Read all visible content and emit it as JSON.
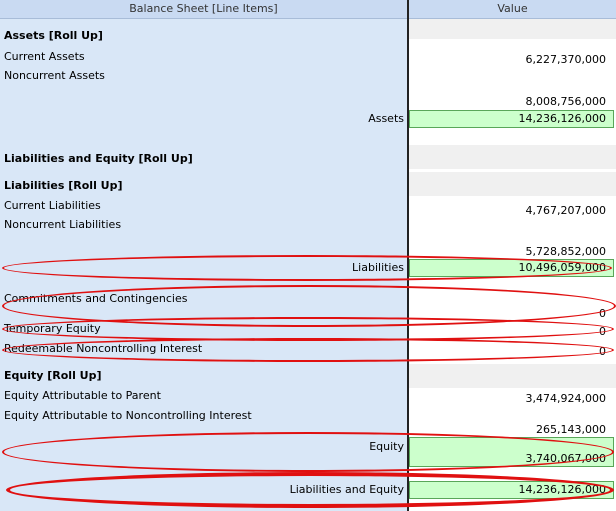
{
  "header": {
    "label_col": "Balance Sheet [Line Items]",
    "value_col": "Value"
  },
  "assets": {
    "title": "Assets [Roll Up]",
    "current_label": "Current Assets",
    "current_value": "6,227,370,000",
    "noncurrent_label": "Noncurrent Assets",
    "noncurrent_value": "8,008,756,000",
    "total_label": "Assets",
    "total_value": "14,236,126,000"
  },
  "le": {
    "title": "Liabilities and Equity [Roll Up]"
  },
  "liabilities": {
    "title": "Liabilities [Roll Up]",
    "current_label": "Current Liabilities",
    "current_value": "4,767,207,000",
    "noncurrent_label": "Noncurrent Liabilities",
    "noncurrent_value": "5,728,852,000",
    "total_label": "Liabilities",
    "total_value": "10,496,059,000"
  },
  "other": {
    "commitments_label": "Commitments and Contingencies",
    "commitments_value": "0",
    "temp_equity_label": "Temporary Equity",
    "temp_equity_value": "0",
    "redeemable_label": "Redeemable Noncontrolling Interest",
    "redeemable_value": "0"
  },
  "equity": {
    "title": "Equity [Roll Up]",
    "parent_label": "Equity Attributable to Parent",
    "parent_value": "3,474,924,000",
    "nci_label": "Equity Attributable to Noncontrolling Interest",
    "nci_value": "265,143,000",
    "total_label": "Equity",
    "total_value": "3,740,067,000"
  },
  "grand_total": {
    "label": "Liabilities and Equity",
    "value": "14,236,126,000"
  },
  "colors": {
    "label_bg": "#d9e7f7",
    "header_bg": "#c9daf2",
    "total_bg": "#ccffcc",
    "highlight": "#e01010"
  }
}
